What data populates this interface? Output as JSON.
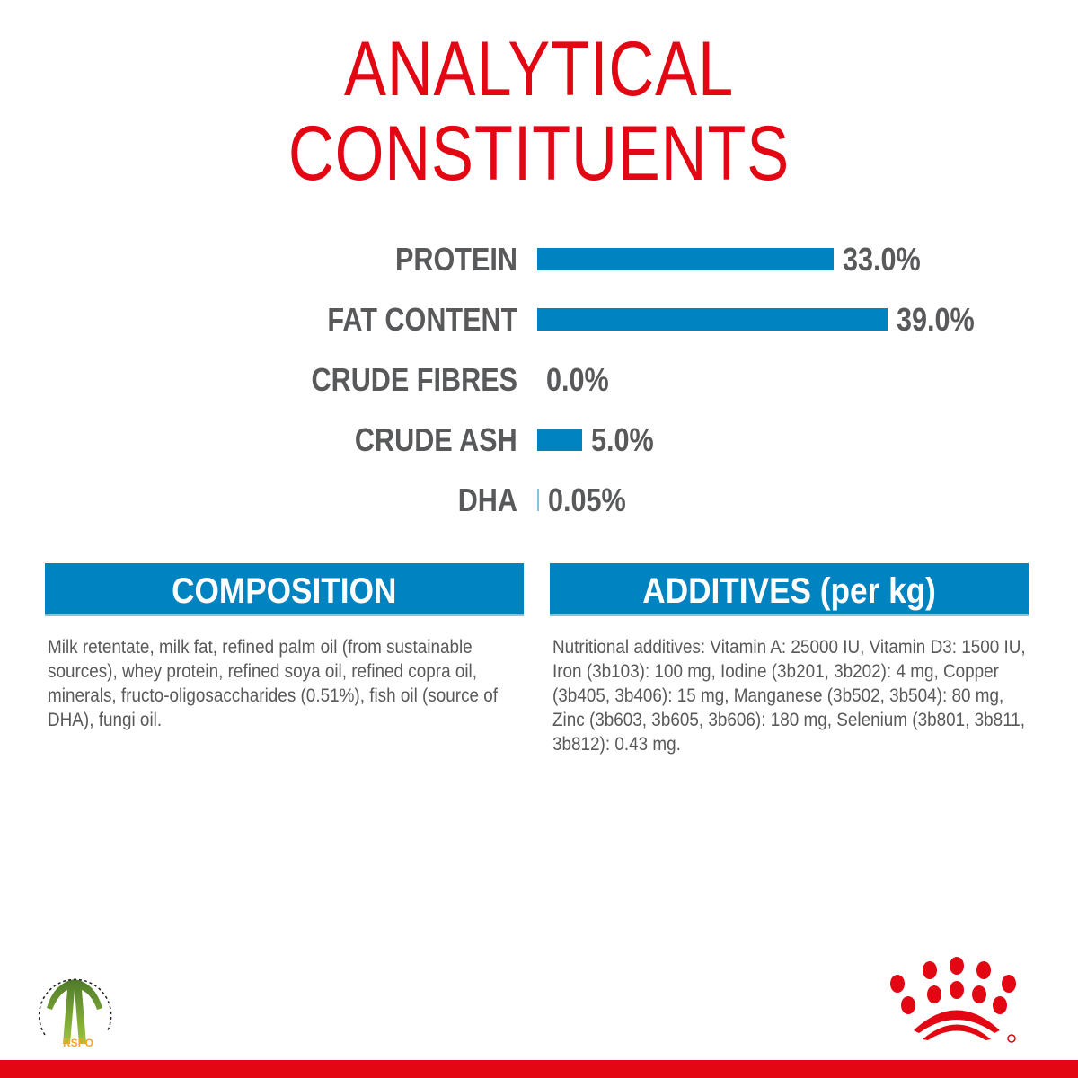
{
  "title": {
    "line1": "ANALYTICAL",
    "line2": "CONSTITUENTS"
  },
  "chart_data": {
    "type": "bar",
    "orientation": "horizontal",
    "categories": [
      "PROTEIN",
      "FAT CONTENT",
      "CRUDE FIBRES",
      "CRUDE ASH",
      "DHA"
    ],
    "values": [
      33.0,
      39.0,
      0.0,
      5.0,
      0.05
    ],
    "labels": [
      "33.0%",
      "39.0%",
      "0.0%",
      "5.0%",
      "0.05%"
    ],
    "unit": "%",
    "bar_color": "#0083c1",
    "grid": false
  },
  "composition": {
    "heading": "COMPOSITION",
    "text": "Milk retentate, milk fat, refined palm oil (from sustainable sources), whey protein, refined soya oil, refined copra oil, minerals, fructo-oligosaccharides (0.51%), fish oil (source of DHA), fungi oil."
  },
  "additives": {
    "heading": "ADDITIVES (per kg)",
    "text": "Nutritional additives: Vitamin A: 25000 IU, Vitamin D3: 1500 IU, Iron (3b103): 100 mg, Iodine (3b201, 3b202): 4 mg, Copper (3b405, 3b406): 15 mg, Manganese (3b502, 3b504): 80 mg, Zinc (3b603, 3b605, 3b606): 180 mg, Selenium (3b801, 3b811, 3b812): 0.43 mg."
  },
  "logos": {
    "rspo": "CERTIFIED SUSTAINABLE PALM OIL RSPO",
    "royal_canin": "Royal Canin crown logo"
  },
  "colors": {
    "brand_red": "#e30613",
    "accent_blue": "#0083c1",
    "text_gray": "#58595b"
  }
}
